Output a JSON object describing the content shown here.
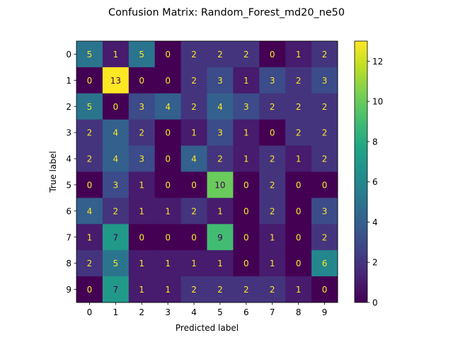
{
  "chart_data": {
    "type": "heatmap",
    "title": "Confusion Matrix: Random_Forest_md20_ne50",
    "xlabel": "Predicted label",
    "ylabel": "True label",
    "x_labels": [
      "0",
      "1",
      "2",
      "3",
      "4",
      "5",
      "6",
      "7",
      "8",
      "9"
    ],
    "y_labels": [
      "0",
      "1",
      "2",
      "3",
      "4",
      "5",
      "6",
      "7",
      "8",
      "9"
    ],
    "values": [
      [
        5,
        1,
        5,
        0,
        2,
        2,
        2,
        0,
        1,
        2
      ],
      [
        0,
        13,
        0,
        0,
        2,
        3,
        1,
        3,
        2,
        3
      ],
      [
        5,
        0,
        3,
        4,
        2,
        4,
        3,
        2,
        2,
        2
      ],
      [
        2,
        4,
        2,
        0,
        1,
        3,
        1,
        0,
        2,
        2
      ],
      [
        2,
        4,
        3,
        0,
        4,
        2,
        1,
        2,
        1,
        2
      ],
      [
        0,
        3,
        1,
        0,
        0,
        10,
        0,
        2,
        0,
        0
      ],
      [
        4,
        2,
        1,
        1,
        2,
        1,
        0,
        2,
        0,
        3
      ],
      [
        1,
        7,
        0,
        0,
        0,
        9,
        0,
        1,
        0,
        2
      ],
      [
        2,
        5,
        1,
        1,
        1,
        1,
        0,
        1,
        0,
        6
      ],
      [
        0,
        7,
        1,
        1,
        2,
        2,
        2,
        2,
        1,
        0
      ]
    ],
    "vmin": 0,
    "vmax": 13,
    "colormap": "viridis",
    "colorbar_ticks": [
      0,
      2,
      4,
      6,
      8,
      10,
      12
    ],
    "grid": false
  }
}
